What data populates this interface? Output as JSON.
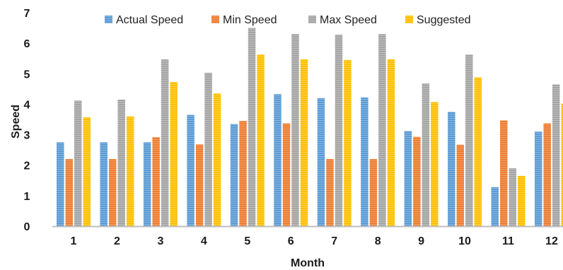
{
  "chart_data": {
    "type": "bar",
    "categories": [
      "1",
      "2",
      "3",
      "4",
      "5",
      "6",
      "7",
      "8",
      "9",
      "10",
      "11",
      "12"
    ],
    "series": [
      {
        "name": "Actual Speed",
        "color": "#5b9bd5",
        "values": [
          2.75,
          2.75,
          2.75,
          3.65,
          3.35,
          4.33,
          4.2,
          4.22,
          3.12,
          3.75,
          1.28,
          3.1
        ]
      },
      {
        "name": "Min Speed",
        "color": "#ed7d31",
        "values": [
          2.2,
          2.2,
          2.92,
          2.68,
          3.45,
          3.37,
          2.2,
          2.2,
          2.93,
          2.67,
          3.47,
          3.37
        ]
      },
      {
        "name": "Max Speed",
        "color": "#a5a5a5",
        "values": [
          4.12,
          4.15,
          5.47,
          5.03,
          6.5,
          6.3,
          6.28,
          6.3,
          4.68,
          5.63,
          1.9,
          4.65
        ]
      },
      {
        "name": "Suggested",
        "color": "#ffc000",
        "values": [
          3.57,
          3.6,
          4.73,
          4.35,
          5.63,
          5.47,
          5.45,
          5.47,
          4.07,
          4.88,
          1.65,
          4.02
        ]
      }
    ],
    "xlabel": "Month",
    "ylabel": "Speed",
    "ylim": [
      0,
      7
    ],
    "yticks": [
      "0",
      "1",
      "2",
      "3",
      "4",
      "5",
      "6",
      "7"
    ],
    "grid": false,
    "legend_position": "top"
  }
}
